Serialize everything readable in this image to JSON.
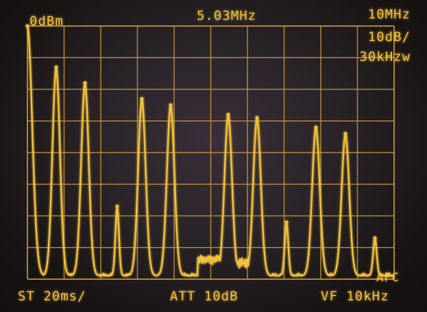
{
  "readouts": {
    "ref_level": "0dBm",
    "center_freq": "5.03MHz",
    "span": "10MHz",
    "scale": "10dB/",
    "rbw": "30kHzw",
    "afc": "AFC",
    "sweep_time": "ST 20ms/",
    "attenuation": "ATT 10dB",
    "video_filter": "VF 10kHz"
  },
  "colors": {
    "trace": "#f2c23a",
    "grid": "#c89a3a"
  },
  "spectrum": {
    "peaks_divisions_below_ref": [
      0.0,
      1.3,
      1.8,
      5.7,
      2.3,
      2.5,
      2.8,
      2.9,
      6.2,
      3.2,
      3.4,
      6.7
    ]
  }
}
